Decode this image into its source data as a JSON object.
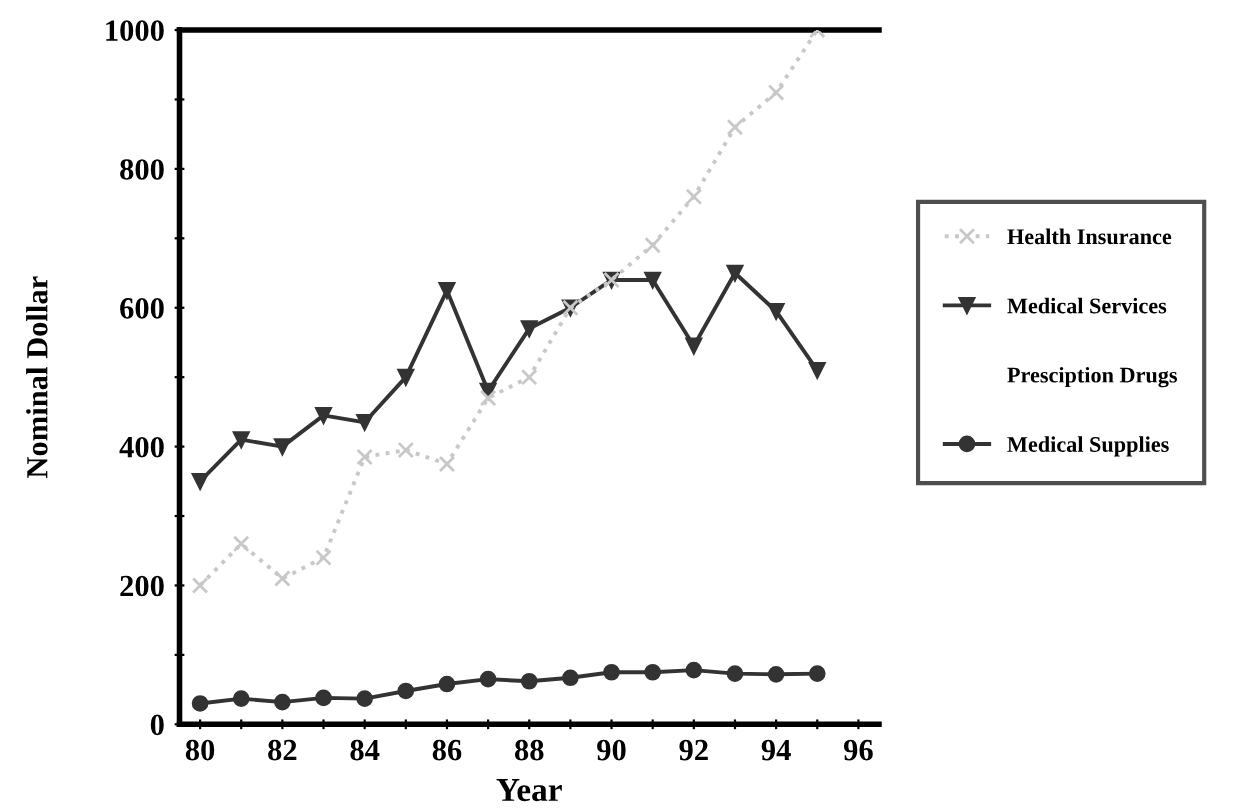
{
  "chart_data": {
    "type": "line",
    "xlabel": "Year",
    "ylabel": "Nominal Dollar",
    "x": [
      80,
      81,
      82,
      83,
      84,
      85,
      86,
      87,
      88,
      89,
      90,
      91,
      92,
      93,
      94,
      95
    ],
    "xlim": [
      79.5,
      96.5
    ],
    "xticks": [
      80,
      {
        "value": 81,
        "label": null
      },
      82,
      {
        "value": 83,
        "label": null
      },
      84,
      {
        "value": 85,
        "label": null
      },
      86,
      {
        "value": 87,
        "label": null
      },
      88,
      {
        "value": 89,
        "label": null
      },
      90,
      {
        "value": 91,
        "label": null
      },
      92,
      {
        "value": 93,
        "label": null
      },
      94,
      {
        "value": 95,
        "label": null
      },
      96
    ],
    "ylim": [
      0,
      1000
    ],
    "yticks": [
      0,
      {
        "value": 100,
        "label": null
      },
      200,
      {
        "value": 300,
        "label": null
      },
      400,
      {
        "value": 500,
        "label": null
      },
      600,
      {
        "value": 700,
        "label": null
      },
      800,
      {
        "value": 900,
        "label": null
      },
      1000
    ],
    "grid": false,
    "legend": "right",
    "series": [
      {
        "name": "Health Insurance",
        "color": "#c8c8c8",
        "marker": "cross",
        "line_style": "dotted",
        "values": [
          200,
          260,
          210,
          240,
          385,
          395,
          375,
          470,
          500,
          600,
          640,
          690,
          760,
          860,
          910,
          1000
        ]
      },
      {
        "name": "Medical Services",
        "color": "#333333",
        "marker": "triangle",
        "line_style": "solid",
        "values": [
          350,
          410,
          400,
          445,
          435,
          500,
          625,
          480,
          570,
          600,
          640,
          640,
          545,
          650,
          595,
          510
        ]
      },
      {
        "name": "Presciption Drugs",
        "marker": "none",
        "line_style": "solid",
        "values": [
          null,
          null,
          null,
          null,
          null,
          null,
          null,
          null,
          null,
          null,
          null,
          null,
          null,
          null,
          null,
          null
        ]
      },
      {
        "name": "Medical Supplies",
        "color": "#333333",
        "marker": "circle",
        "line_style": "solid",
        "values": [
          30,
          37,
          32,
          38,
          37,
          48,
          58,
          65,
          62,
          67,
          75,
          75,
          78,
          73,
          72,
          73
        ]
      }
    ]
  }
}
